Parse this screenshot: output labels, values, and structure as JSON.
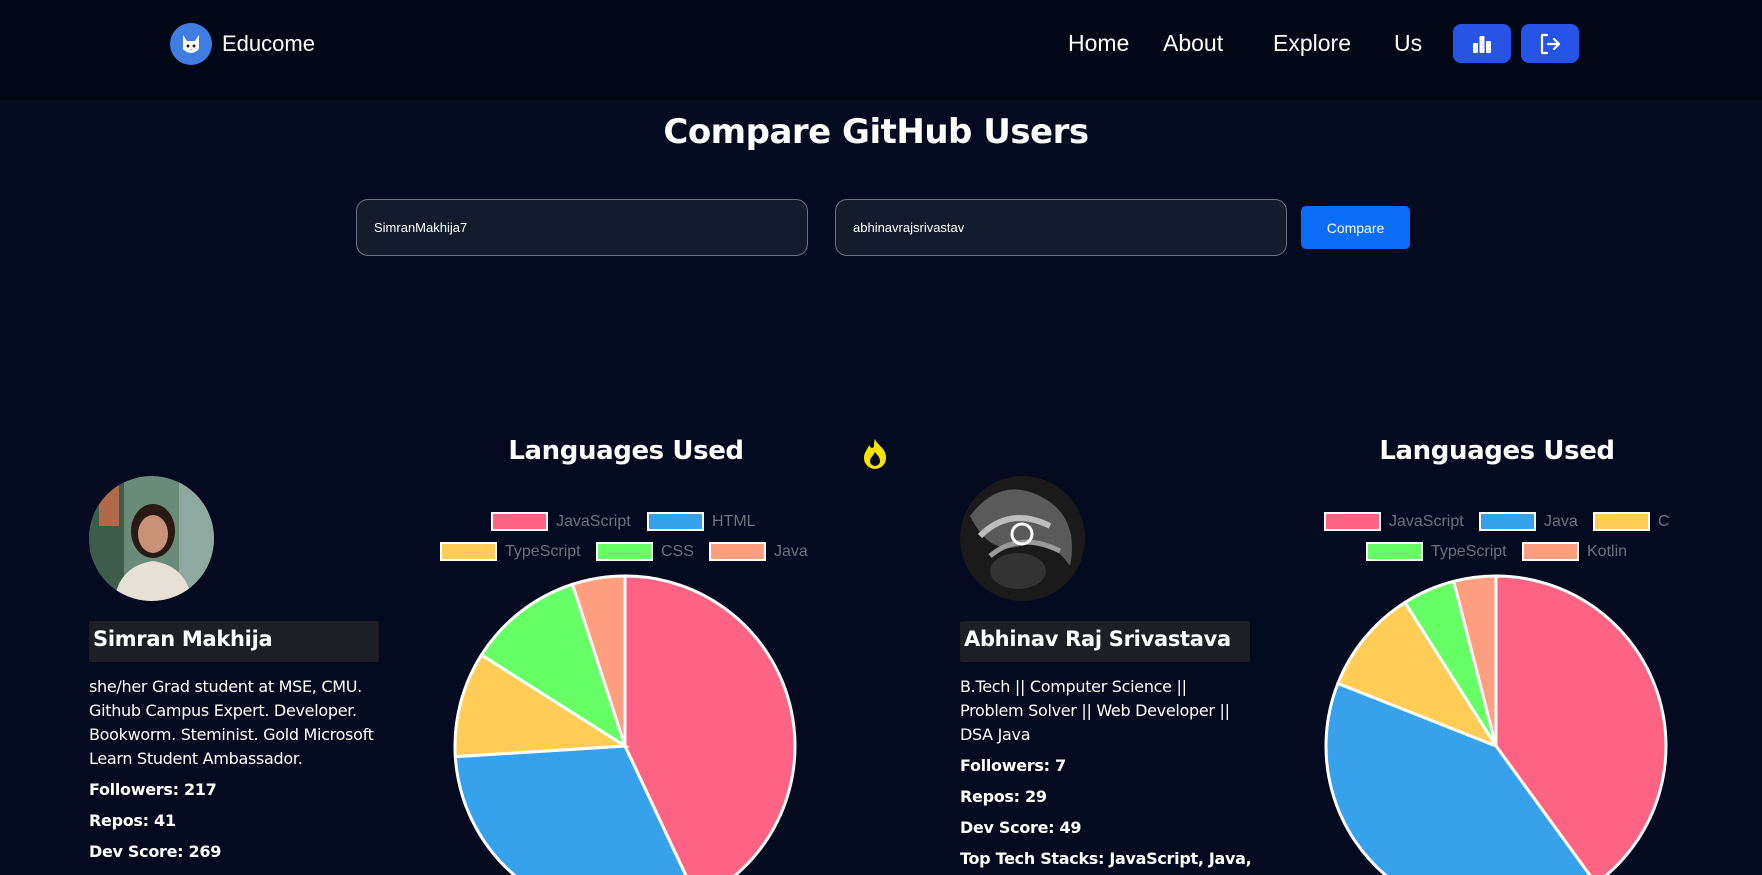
{
  "navbar": {
    "brand_name": "Educome",
    "links": [
      "Home",
      "About",
      "Explore",
      "Us"
    ],
    "stats_button_icon": "bar-chart-icon",
    "logout_button_icon": "logout-icon"
  },
  "page_title": "Compare GitHub Users",
  "inputs": {
    "user1_value": "SimranMakhija7",
    "user2_value": "abhinavrajsrivastav"
  },
  "compare_label": "Compare",
  "users": [
    {
      "name": "Simran Makhija",
      "bio": "she/her Grad student at MSE, CMU. Github Campus Expert. Developer. Bookworm. Steminist. Gold Microsoft Learn Student Ambassador.",
      "followers": "Followers: 217",
      "repos": "Repos: 41",
      "dev_score": "Dev Score: 269",
      "chart_title": "Languages Used"
    },
    {
      "name": "Abhinav Raj Srivastava",
      "bio": "B.Tech || Computer Science || Problem Solver || Web Developer || DSA Java",
      "followers": "Followers: 7",
      "repos": "Repos: 29",
      "dev_score": "Dev Score: 49",
      "top_stacks": "Top Tech Stacks: JavaScript, Java,",
      "chart_title": "Languages Used"
    }
  ],
  "colors": {
    "accent": "#2754e6",
    "compare_button": "#0b6cf5",
    "background": "#040a1f",
    "flame": "#f5e400"
  },
  "chart_data": [
    {
      "type": "pie",
      "title": "Languages Used",
      "legend_position": "top",
      "categories": [
        "JavaScript",
        "HTML",
        "TypeScript",
        "CSS",
        "Java"
      ],
      "values": [
        43,
        31,
        10,
        11,
        5
      ],
      "colors": [
        "#ff6384",
        "#36a2eb",
        "#ffcd56",
        "#66ff66",
        "#ff9f7f"
      ]
    },
    {
      "type": "pie",
      "title": "Languages Used",
      "legend_position": "top",
      "categories": [
        "JavaScript",
        "Java",
        "C",
        "TypeScript",
        "Kotlin"
      ],
      "values": [
        40,
        41,
        10,
        5,
        4
      ],
      "colors": [
        "#ff6384",
        "#36a2eb",
        "#ffcd56",
        "#66ff66",
        "#ff9f7f"
      ]
    }
  ]
}
